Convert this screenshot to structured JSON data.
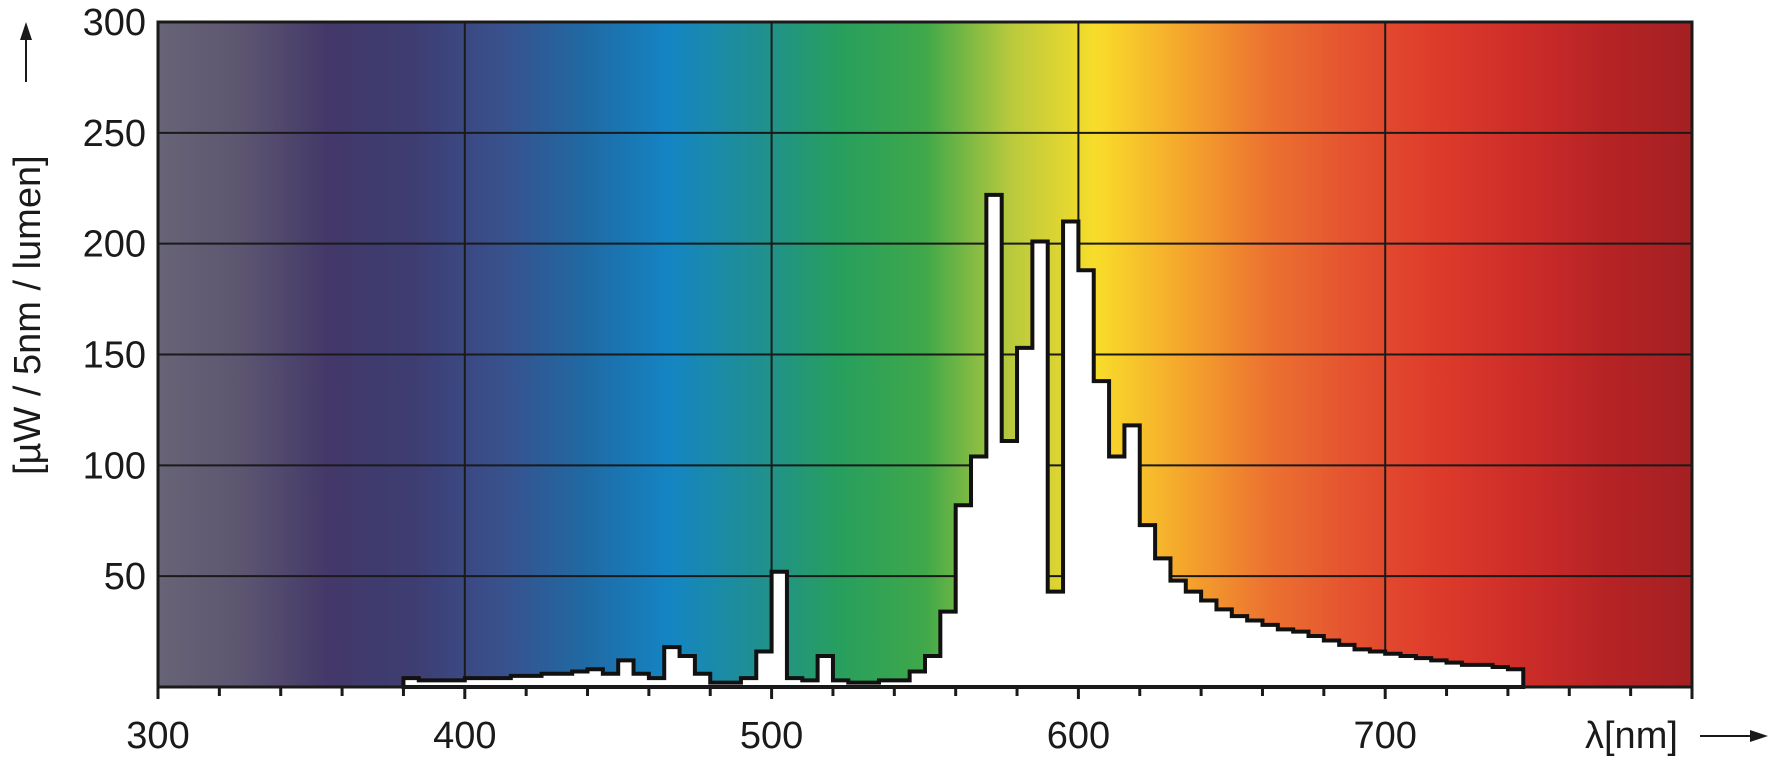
{
  "chart_data": {
    "type": "area",
    "title": "",
    "xlabel": "λ[nm]",
    "ylabel": "[µW / 5nm / lumen]",
    "xlim": [
      300,
      800
    ],
    "ylim": [
      0,
      300
    ],
    "x_ticks": [
      300,
      400,
      500,
      600,
      700
    ],
    "x_tick_labels": [
      "300",
      "400",
      "500",
      "600",
      "700"
    ],
    "y_ticks": [
      50,
      100,
      150,
      200,
      250,
      300
    ],
    "y_tick_labels": [
      "50",
      "100",
      "150",
      "200",
      "250",
      "300"
    ],
    "grid": true,
    "background": "visible spectrum color gradient (violet to red)",
    "series": [
      {
        "step_width_nm": 5,
        "x_start": [
          380,
          385,
          390,
          395,
          400,
          405,
          410,
          415,
          420,
          425,
          430,
          435,
          440,
          445,
          450,
          455,
          460,
          465,
          470,
          475,
          480,
          485,
          490,
          495,
          500,
          505,
          510,
          515,
          520,
          525,
          530,
          535,
          540,
          545,
          550,
          555,
          560,
          565,
          570,
          575,
          580,
          585,
          590,
          595,
          600,
          605,
          610,
          615,
          620,
          625,
          630,
          635,
          640,
          645,
          650,
          655,
          660,
          665,
          670,
          675,
          680,
          685,
          690,
          695,
          700,
          705,
          710,
          715,
          720,
          725,
          730,
          735,
          740
        ],
        "values": [
          4,
          3,
          3,
          3,
          4,
          4,
          4,
          5,
          5,
          6,
          6,
          7,
          8,
          6,
          12,
          6,
          4,
          18,
          14,
          6,
          2,
          2,
          4,
          16,
          52,
          4,
          3,
          14,
          3,
          2,
          2,
          3,
          3,
          7,
          14,
          34,
          82,
          104,
          222,
          111,
          153,
          201,
          43,
          210,
          188,
          138,
          104,
          118,
          73,
          58,
          48,
          43,
          39,
          35,
          32,
          30,
          28,
          26,
          25,
          23,
          21,
          19,
          17,
          16,
          15,
          14,
          13,
          12,
          11,
          10,
          10,
          9,
          8
        ]
      }
    ]
  },
  "colors": {
    "grid": "#1a1a1a",
    "spd_fill": "#ffffff",
    "spd_stroke": "#111111",
    "spectrum_stops": [
      "#686476",
      "#5c5570",
      "#433869",
      "#3e3d72",
      "#39508c",
      "#2069a3",
      "#1485c3",
      "#1f8f93",
      "#279f5e",
      "#3fa84a",
      "#b8c93d",
      "#f8dd2a",
      "#f5a82c",
      "#ec7330",
      "#e45230",
      "#de3b2b",
      "#cd2d29",
      "#b62325",
      "#a42023"
    ]
  }
}
